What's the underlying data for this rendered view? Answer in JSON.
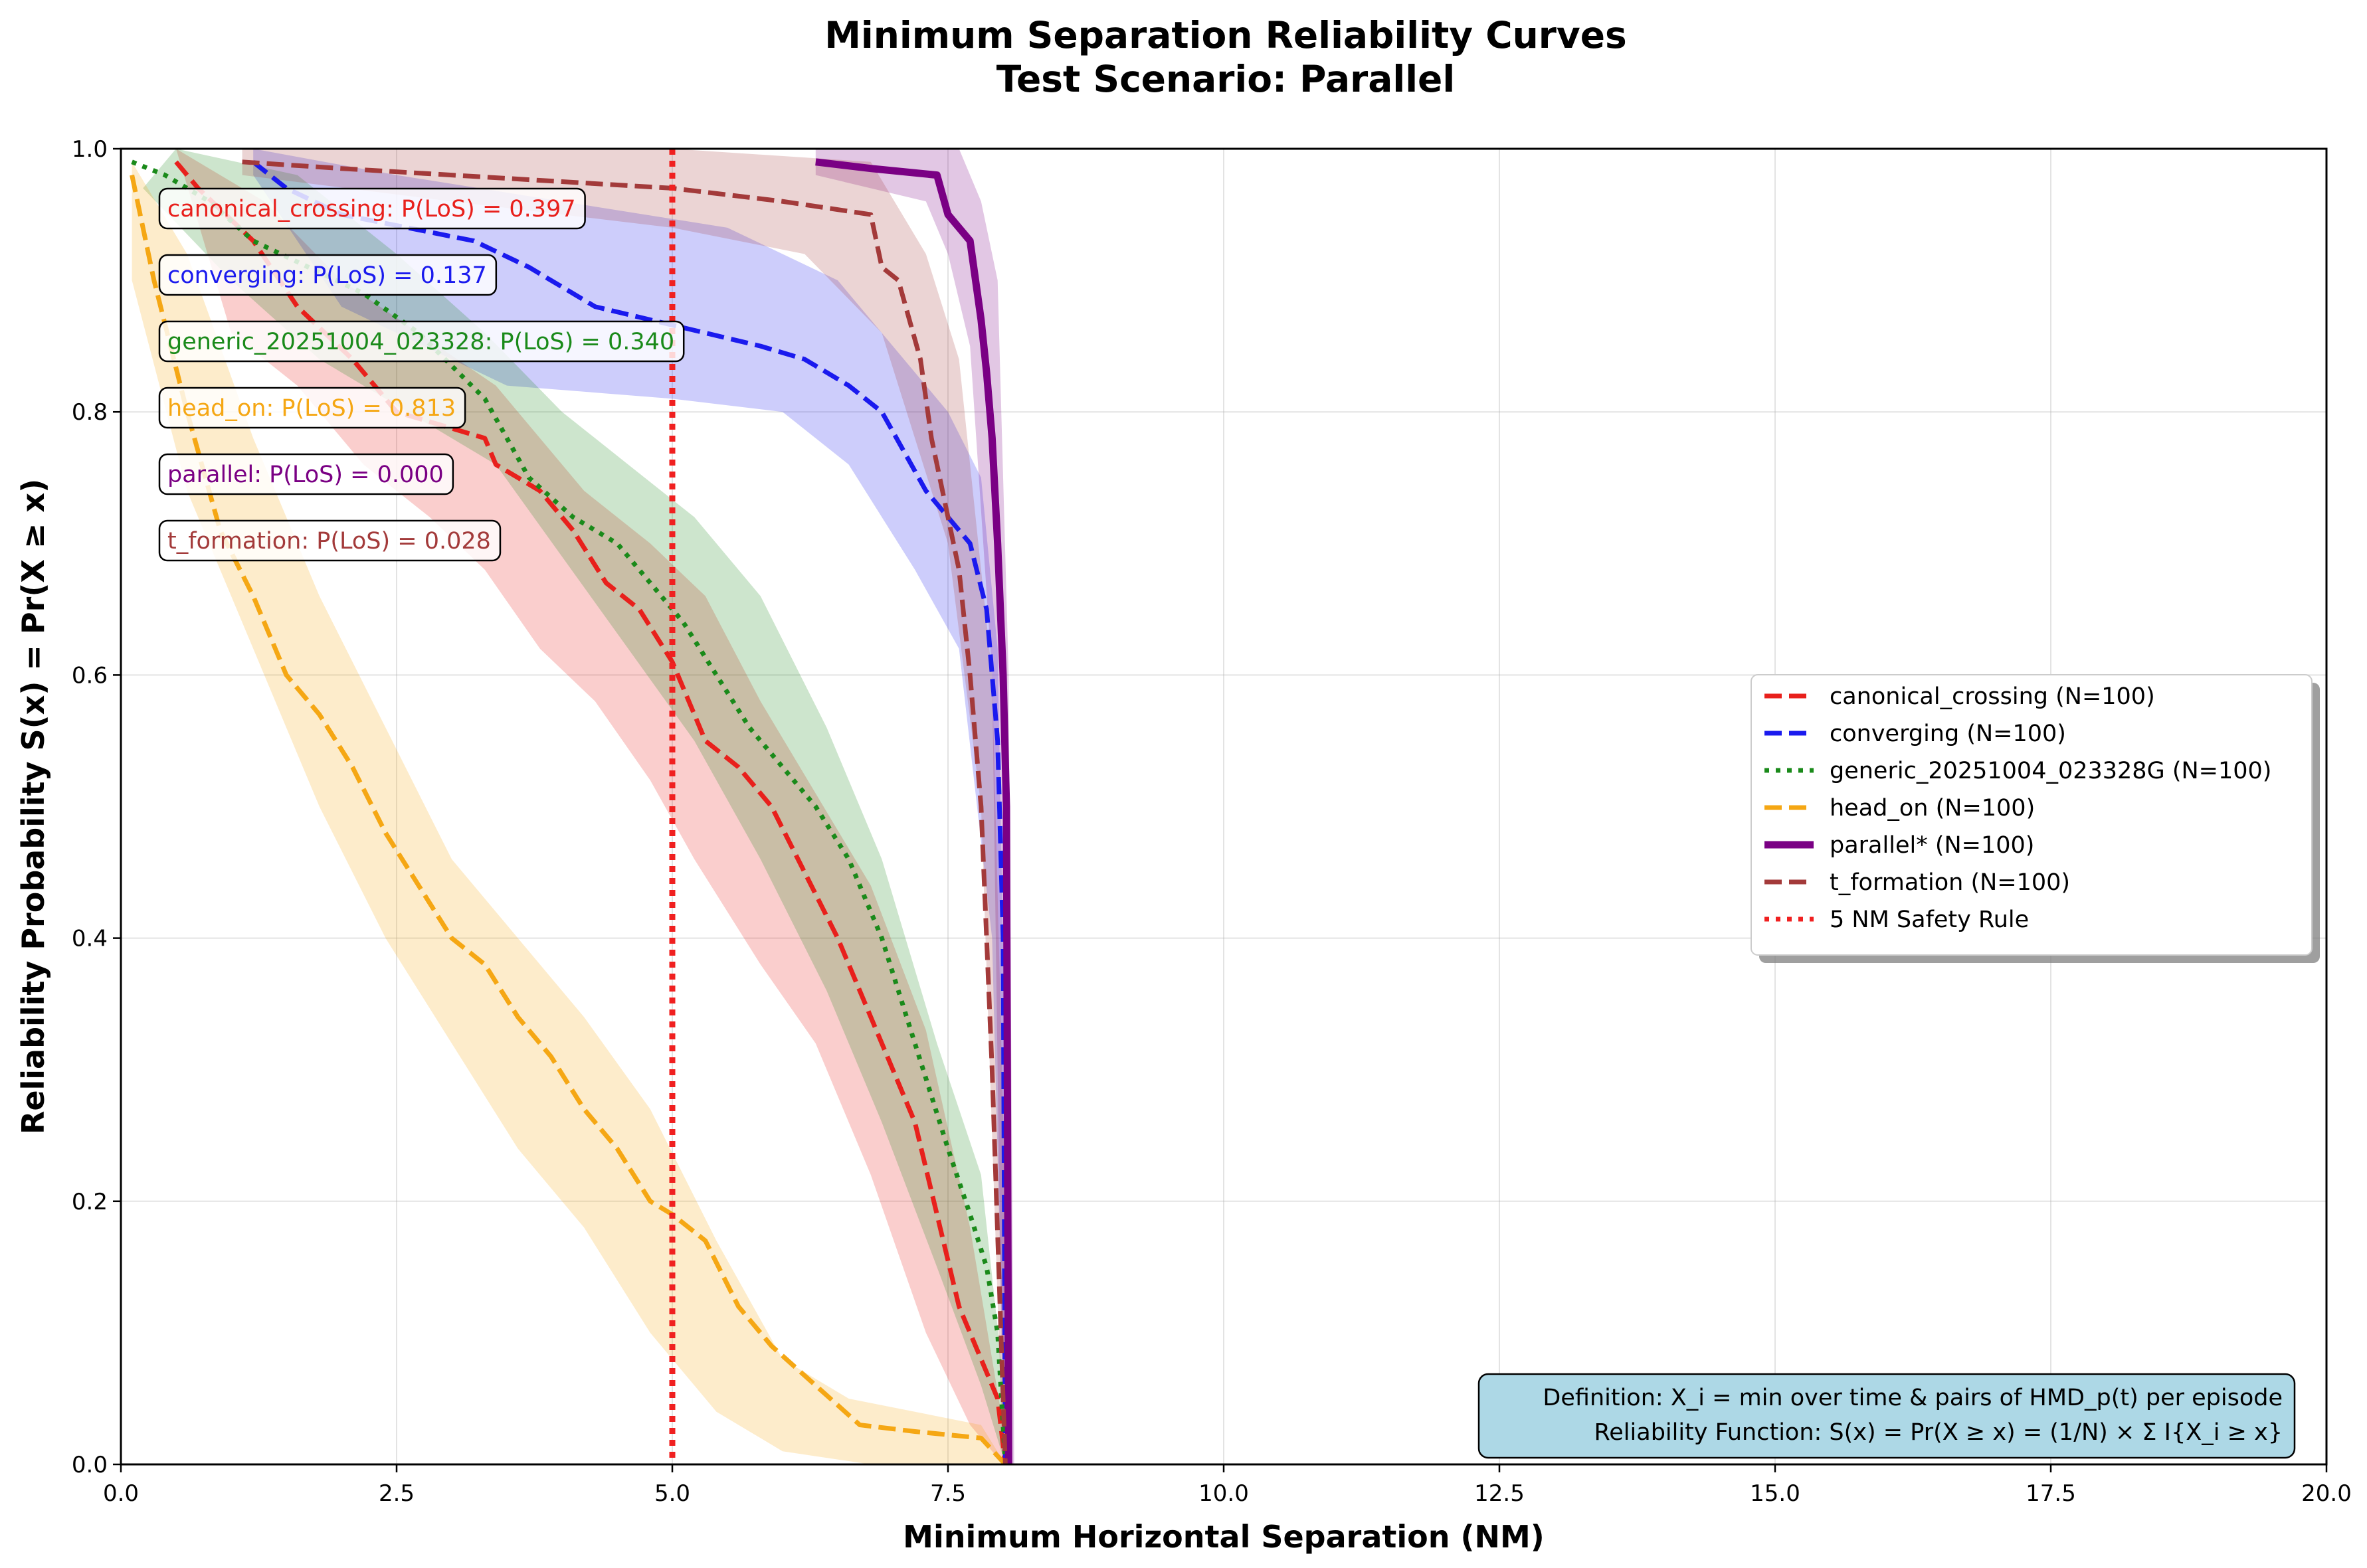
{
  "chart_data": {
    "type": "line",
    "title": "Minimum Separation Reliability Curves",
    "subtitle": "Test Scenario: Parallel",
    "xlabel": "Minimum Horizontal Separation (NM)",
    "ylabel": "Reliability Probability S(x) = Pr(X ≥ x)",
    "xlim": [
      0,
      20
    ],
    "ylim": [
      0,
      1
    ],
    "xticks": [
      "0.0",
      "2.5",
      "5.0",
      "7.5",
      "10.0",
      "12.5",
      "15.0",
      "17.5",
      "20.0"
    ],
    "yticks": [
      "0.0",
      "0.2",
      "0.4",
      "0.6",
      "0.8",
      "1.0"
    ],
    "grid": true,
    "legend_position": "center-right",
    "series": [
      {
        "name": "canonical_crossing (N=100)",
        "color": "#e8201c",
        "style": "dashed",
        "annotation": "canonical_crossing: P(LoS) = 0.397",
        "band_upper": [
          [
            0.5,
            1.0
          ],
          [
            1.3,
            0.96
          ],
          [
            2.0,
            0.9
          ],
          [
            2.7,
            0.86
          ],
          [
            3.4,
            0.82
          ],
          [
            4.2,
            0.74
          ],
          [
            4.8,
            0.7
          ],
          [
            5.3,
            0.66
          ],
          [
            5.8,
            0.58
          ],
          [
            6.3,
            0.51
          ],
          [
            6.8,
            0.44
          ],
          [
            7.3,
            0.33
          ],
          [
            7.7,
            0.18
          ],
          [
            8.0,
            0.03
          ]
        ],
        "band_lower": [
          [
            1.0,
            0.86
          ],
          [
            1.6,
            0.82
          ],
          [
            2.2,
            0.76
          ],
          [
            2.8,
            0.72
          ],
          [
            3.3,
            0.68
          ],
          [
            3.8,
            0.62
          ],
          [
            4.3,
            0.58
          ],
          [
            4.8,
            0.52
          ],
          [
            5.2,
            0.46
          ],
          [
            5.8,
            0.38
          ],
          [
            6.3,
            0.32
          ],
          [
            6.8,
            0.22
          ],
          [
            7.3,
            0.1
          ],
          [
            7.7,
            0.03
          ],
          [
            8.0,
            0.0
          ]
        ],
        "points": [
          [
            0.5,
            0.99
          ],
          [
            0.7,
            0.97
          ],
          [
            1.2,
            0.93
          ],
          [
            1.6,
            0.88
          ],
          [
            2.1,
            0.84
          ],
          [
            2.5,
            0.8
          ],
          [
            2.9,
            0.79
          ],
          [
            3.3,
            0.78
          ],
          [
            3.4,
            0.76
          ],
          [
            3.8,
            0.74
          ],
          [
            4.1,
            0.71
          ],
          [
            4.4,
            0.67
          ],
          [
            4.7,
            0.65
          ],
          [
            5.0,
            0.61
          ],
          [
            5.3,
            0.55
          ],
          [
            5.6,
            0.53
          ],
          [
            5.9,
            0.5
          ],
          [
            6.2,
            0.45
          ],
          [
            6.5,
            0.4
          ],
          [
            6.8,
            0.34
          ],
          [
            7.0,
            0.3
          ],
          [
            7.2,
            0.26
          ],
          [
            7.4,
            0.19
          ],
          [
            7.6,
            0.12
          ],
          [
            7.8,
            0.08
          ],
          [
            7.95,
            0.05
          ],
          [
            8.02,
            0.0
          ]
        ]
      },
      {
        "name": "converging (N=100)",
        "color": "#1a1aee",
        "style": "dashed",
        "annotation": "converging: P(LoS) = 0.137",
        "band_upper": [
          [
            1.2,
            1.0
          ],
          [
            2.5,
            0.98
          ],
          [
            4.0,
            0.96
          ],
          [
            5.5,
            0.94
          ],
          [
            6.5,
            0.9
          ],
          [
            7.0,
            0.85
          ],
          [
            7.5,
            0.8
          ],
          [
            7.8,
            0.75
          ],
          [
            7.95,
            0.62
          ],
          [
            8.02,
            0.3
          ]
        ],
        "band_lower": [
          [
            1.2,
            0.98
          ],
          [
            2.0,
            0.88
          ],
          [
            3.5,
            0.82
          ],
          [
            5.0,
            0.81
          ],
          [
            6.0,
            0.8
          ],
          [
            6.6,
            0.76
          ],
          [
            7.2,
            0.68
          ],
          [
            7.6,
            0.62
          ],
          [
            7.9,
            0.4
          ],
          [
            8.02,
            0.0
          ]
        ],
        "points": [
          [
            1.2,
            0.99
          ],
          [
            1.5,
            0.97
          ],
          [
            2.0,
            0.95
          ],
          [
            2.6,
            0.94
          ],
          [
            3.2,
            0.93
          ],
          [
            3.7,
            0.91
          ],
          [
            4.3,
            0.88
          ],
          [
            4.8,
            0.87
          ],
          [
            5.3,
            0.86
          ],
          [
            5.8,
            0.85
          ],
          [
            6.2,
            0.84
          ],
          [
            6.6,
            0.82
          ],
          [
            6.9,
            0.8
          ],
          [
            7.1,
            0.77
          ],
          [
            7.3,
            0.74
          ],
          [
            7.5,
            0.72
          ],
          [
            7.7,
            0.7
          ],
          [
            7.85,
            0.65
          ],
          [
            7.95,
            0.55
          ],
          [
            8.0,
            0.4
          ],
          [
            8.02,
            0.0
          ]
        ]
      },
      {
        "name": "generic_20251004_023328G (N=100)",
        "color": "#1a8a1a",
        "style": "dotted",
        "annotation": "generic_20251004_023328: P(LoS) = 0.340",
        "band_upper": [
          [
            0.5,
            1.0
          ],
          [
            1.6,
            0.98
          ],
          [
            2.5,
            0.92
          ],
          [
            3.3,
            0.86
          ],
          [
            4.0,
            0.8
          ],
          [
            4.6,
            0.76
          ],
          [
            5.2,
            0.72
          ],
          [
            5.8,
            0.66
          ],
          [
            6.4,
            0.56
          ],
          [
            6.9,
            0.46
          ],
          [
            7.4,
            0.32
          ],
          [
            7.8,
            0.22
          ],
          [
            8.02,
            0.05
          ]
        ],
        "band_lower": [
          [
            0.2,
            0.97
          ],
          [
            1.0,
            0.9
          ],
          [
            1.8,
            0.84
          ],
          [
            2.6,
            0.8
          ],
          [
            3.4,
            0.76
          ],
          [
            4.0,
            0.69
          ],
          [
            4.6,
            0.62
          ],
          [
            5.2,
            0.55
          ],
          [
            5.8,
            0.46
          ],
          [
            6.4,
            0.36
          ],
          [
            6.9,
            0.26
          ],
          [
            7.4,
            0.15
          ],
          [
            7.8,
            0.06
          ],
          [
            8.02,
            0.0
          ]
        ],
        "points": [
          [
            0.1,
            0.99
          ],
          [
            0.4,
            0.98
          ],
          [
            0.8,
            0.96
          ],
          [
            1.2,
            0.93
          ],
          [
            1.7,
            0.91
          ],
          [
            2.2,
            0.89
          ],
          [
            2.7,
            0.86
          ],
          [
            3.3,
            0.81
          ],
          [
            3.7,
            0.75
          ],
          [
            4.1,
            0.72
          ],
          [
            4.5,
            0.7
          ],
          [
            4.8,
            0.67
          ],
          [
            5.1,
            0.64
          ],
          [
            5.4,
            0.6
          ],
          [
            5.7,
            0.56
          ],
          [
            6.0,
            0.53
          ],
          [
            6.3,
            0.5
          ],
          [
            6.6,
            0.46
          ],
          [
            6.9,
            0.4
          ],
          [
            7.2,
            0.32
          ],
          [
            7.5,
            0.24
          ],
          [
            7.7,
            0.19
          ],
          [
            7.85,
            0.15
          ],
          [
            7.95,
            0.1
          ],
          [
            8.02,
            0.0
          ]
        ]
      },
      {
        "name": "head_on (N=100)",
        "color": "#f5a714",
        "style": "dashed",
        "annotation": "head_on: P(LoS) = 0.813",
        "band_upper": [
          [
            0.1,
            0.99
          ],
          [
            0.6,
            0.92
          ],
          [
            1.2,
            0.78
          ],
          [
            1.8,
            0.66
          ],
          [
            2.4,
            0.56
          ],
          [
            3.0,
            0.46
          ],
          [
            3.6,
            0.4
          ],
          [
            4.2,
            0.34
          ],
          [
            4.8,
            0.27
          ],
          [
            5.4,
            0.17
          ],
          [
            6.0,
            0.08
          ],
          [
            6.6,
            0.05
          ],
          [
            7.2,
            0.04
          ],
          [
            7.8,
            0.03
          ],
          [
            8.02,
            0.0
          ]
        ],
        "band_lower": [
          [
            0.1,
            0.9
          ],
          [
            0.6,
            0.74
          ],
          [
            1.2,
            0.62
          ],
          [
            1.8,
            0.5
          ],
          [
            2.4,
            0.4
          ],
          [
            3.0,
            0.32
          ],
          [
            3.6,
            0.24
          ],
          [
            4.2,
            0.18
          ],
          [
            4.8,
            0.1
          ],
          [
            5.4,
            0.04
          ],
          [
            6.0,
            0.01
          ],
          [
            6.8,
            0.0
          ],
          [
            8.02,
            0.0
          ]
        ],
        "points": [
          [
            0.1,
            0.98
          ],
          [
            0.3,
            0.9
          ],
          [
            0.6,
            0.8
          ],
          [
            0.9,
            0.71
          ],
          [
            1.2,
            0.66
          ],
          [
            1.5,
            0.6
          ],
          [
            1.8,
            0.57
          ],
          [
            2.1,
            0.53
          ],
          [
            2.4,
            0.48
          ],
          [
            2.7,
            0.44
          ],
          [
            3.0,
            0.4
          ],
          [
            3.3,
            0.38
          ],
          [
            3.6,
            0.34
          ],
          [
            3.9,
            0.31
          ],
          [
            4.2,
            0.27
          ],
          [
            4.5,
            0.24
          ],
          [
            4.8,
            0.2
          ],
          [
            5.0,
            0.19
          ],
          [
            5.3,
            0.17
          ],
          [
            5.6,
            0.12
          ],
          [
            5.9,
            0.09
          ],
          [
            6.3,
            0.06
          ],
          [
            6.7,
            0.03
          ],
          [
            7.2,
            0.025
          ],
          [
            7.8,
            0.02
          ],
          [
            8.02,
            0.0
          ]
        ]
      },
      {
        "name": "parallel* (N=100)",
        "color": "#7a0084",
        "style": "solid",
        "annotation": "parallel: P(LoS) = 0.000",
        "band_upper": [
          [
            6.3,
            1.0
          ],
          [
            7.6,
            1.0
          ],
          [
            7.8,
            0.96
          ],
          [
            7.95,
            0.9
          ],
          [
            8.05,
            0.6
          ],
          [
            8.1,
            0.0
          ]
        ],
        "band_lower": [
          [
            6.3,
            0.98
          ],
          [
            7.3,
            0.96
          ],
          [
            7.5,
            0.92
          ],
          [
            7.7,
            0.85
          ],
          [
            7.9,
            0.6
          ],
          [
            8.0,
            0.0
          ]
        ],
        "points": [
          [
            6.3,
            0.99
          ],
          [
            6.8,
            0.985
          ],
          [
            7.4,
            0.98
          ],
          [
            7.5,
            0.95
          ],
          [
            7.6,
            0.94
          ],
          [
            7.7,
            0.93
          ],
          [
            7.75,
            0.9
          ],
          [
            7.8,
            0.87
          ],
          [
            7.85,
            0.83
          ],
          [
            7.9,
            0.78
          ],
          [
            7.95,
            0.7
          ],
          [
            8.0,
            0.6
          ],
          [
            8.03,
            0.5
          ],
          [
            8.05,
            0.0
          ]
        ]
      },
      {
        "name": "t_formation (N=100)",
        "color": "#a33a3a",
        "style": "dashed",
        "annotation": "t_formation: P(LoS) = 0.028",
        "band_upper": [
          [
            1.1,
            1.0
          ],
          [
            3.0,
            1.0
          ],
          [
            5.0,
            1.0
          ],
          [
            6.8,
            0.99
          ],
          [
            7.3,
            0.92
          ],
          [
            7.6,
            0.84
          ],
          [
            7.9,
            0.6
          ],
          [
            8.02,
            0.2
          ]
        ],
        "band_lower": [
          [
            1.1,
            0.98
          ],
          [
            3.0,
            0.96
          ],
          [
            5.0,
            0.94
          ],
          [
            6.2,
            0.92
          ],
          [
            6.9,
            0.86
          ],
          [
            7.2,
            0.78
          ],
          [
            7.5,
            0.7
          ],
          [
            7.8,
            0.5
          ],
          [
            8.0,
            0.0
          ]
        ],
        "points": [
          [
            1.1,
            0.99
          ],
          [
            2.0,
            0.985
          ],
          [
            3.0,
            0.98
          ],
          [
            4.0,
            0.975
          ],
          [
            5.0,
            0.97
          ],
          [
            6.0,
            0.96
          ],
          [
            6.8,
            0.95
          ],
          [
            6.9,
            0.91
          ],
          [
            7.05,
            0.9
          ],
          [
            7.15,
            0.87
          ],
          [
            7.25,
            0.84
          ],
          [
            7.35,
            0.78
          ],
          [
            7.5,
            0.72
          ],
          [
            7.6,
            0.68
          ],
          [
            7.7,
            0.6
          ],
          [
            7.8,
            0.5
          ],
          [
            7.9,
            0.3
          ],
          [
            7.98,
            0.1
          ],
          [
            8.02,
            0.0
          ]
        ]
      }
    ],
    "reference_line": {
      "name": "5 NM Safety Rule",
      "x": 5.0,
      "color": "#f02020",
      "style": "dotted"
    },
    "definition_box": {
      "line1": "Definition: X_i = min over time & pairs of HMD_p(t) per episode",
      "line2": "Reliability Function: S(x) = Pr(X ≥ x) = (1/N) × Σ I{X_i ≥ x}",
      "background": "#add8e6"
    }
  }
}
